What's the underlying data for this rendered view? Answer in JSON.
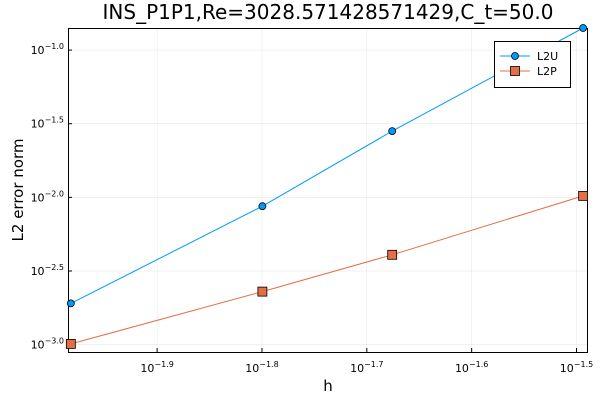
{
  "chart_data": {
    "type": "line",
    "title": "INS_P1P1,Re=3028.571428571429,C_t=50.0",
    "xlabel": "h",
    "ylabel": "L2 error norm",
    "xscale": "log10",
    "yscale": "log10",
    "xlim": [
      -1.985,
      -1.49
    ],
    "ylim": [
      -3.05,
      -0.85
    ],
    "x_ticks": [
      {
        "value": -1.9,
        "base": "10",
        "exp": "−1.9"
      },
      {
        "value": -1.8,
        "base": "10",
        "exp": "−1.8"
      },
      {
        "value": -1.7,
        "base": "10",
        "exp": "−1.7"
      },
      {
        "value": -1.6,
        "base": "10",
        "exp": "−1.6"
      },
      {
        "value": -1.5,
        "base": "10",
        "exp": "−1.5"
      }
    ],
    "y_ticks": [
      {
        "value": -3.0,
        "base": "10",
        "exp": "−3.0"
      },
      {
        "value": -2.5,
        "base": "10",
        "exp": "−2.5"
      },
      {
        "value": -2.0,
        "base": "10",
        "exp": "−2.0"
      },
      {
        "value": -1.5,
        "base": "10",
        "exp": "−1.5"
      },
      {
        "value": -1.0,
        "base": "10",
        "exp": "−1.0"
      }
    ],
    "grid": true,
    "legend_position": "top-right",
    "series": [
      {
        "name": "L2U",
        "color": "#009AFA",
        "marker": "circle",
        "log10_x": [
          -1.9823,
          -1.7996,
          -1.6758,
          -1.4937
        ],
        "log10_y": [
          -2.72,
          -2.06,
          -1.55,
          -0.85
        ]
      },
      {
        "name": "L2P",
        "color": "#E26F46",
        "marker": "square",
        "log10_x": [
          -1.9823,
          -1.7996,
          -1.6758,
          -1.4937
        ],
        "log10_y": [
          -2.995,
          -2.64,
          -2.39,
          -1.99
        ]
      }
    ]
  }
}
